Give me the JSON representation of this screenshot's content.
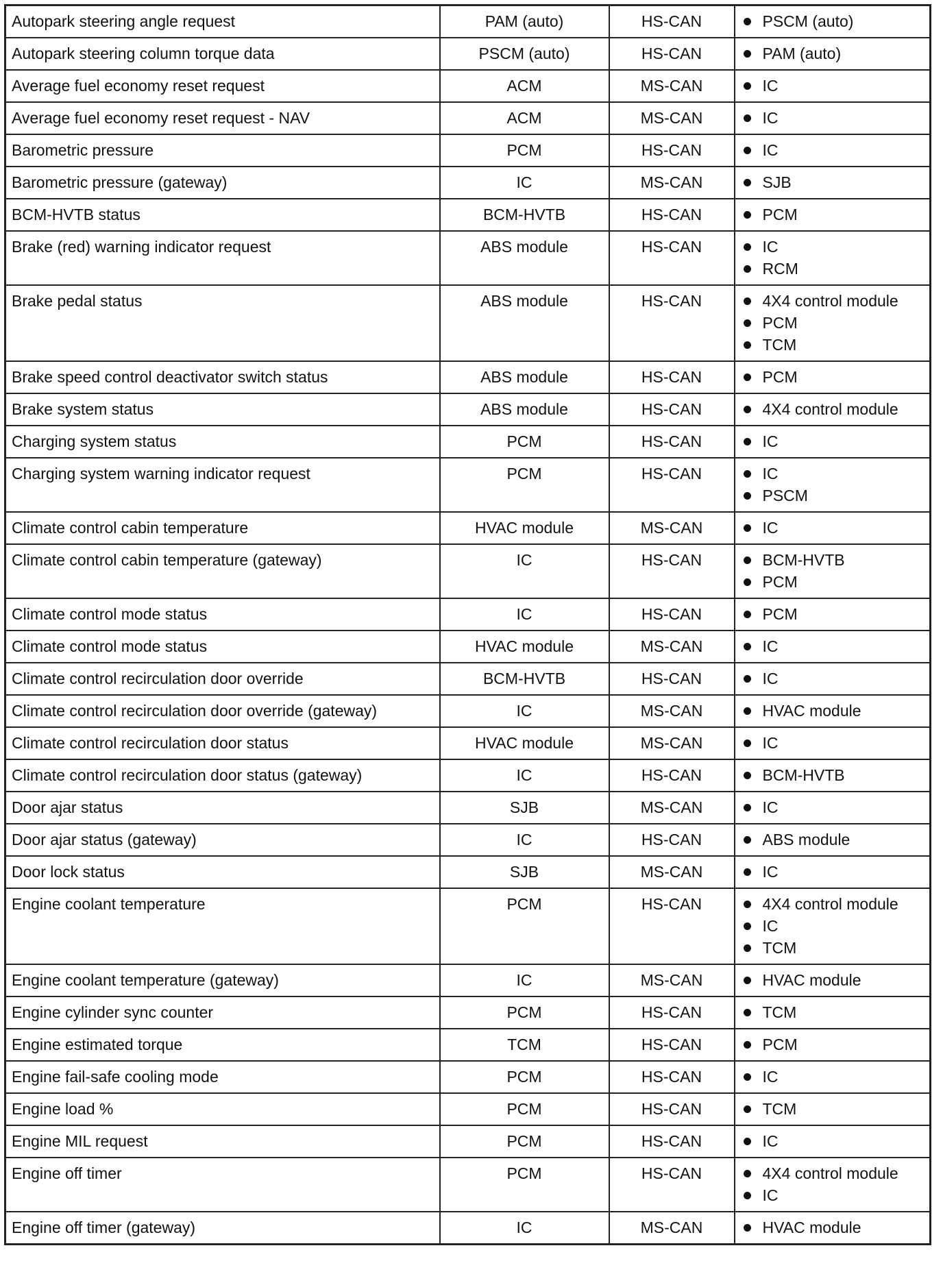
{
  "table": {
    "rows": [
      [
        "Autopark steering angle request",
        "PAM (auto)",
        "HS-CAN",
        [
          "PSCM (auto)"
        ]
      ],
      [
        "Autopark steering column torque data",
        "PSCM (auto)",
        "HS-CAN",
        [
          "PAM (auto)"
        ]
      ],
      [
        "Average fuel economy reset request",
        "ACM",
        "MS-CAN",
        [
          "IC"
        ]
      ],
      [
        "Average fuel economy reset request - NAV",
        "ACM",
        "MS-CAN",
        [
          "IC"
        ]
      ],
      [
        "Barometric pressure",
        "PCM",
        "HS-CAN",
        [
          "IC"
        ]
      ],
      [
        "Barometric pressure (gateway)",
        "IC",
        "MS-CAN",
        [
          "SJB"
        ]
      ],
      [
        "BCM-HVTB status",
        "BCM-HVTB",
        "HS-CAN",
        [
          "PCM"
        ]
      ],
      [
        "Brake (red) warning indicator request",
        "ABS module",
        "HS-CAN",
        [
          "IC",
          "RCM"
        ]
      ],
      [
        "Brake pedal status",
        "ABS module",
        "HS-CAN",
        [
          "4X4 control module",
          "PCM",
          "TCM"
        ]
      ],
      [
        "Brake speed control deactivator switch status",
        "ABS module",
        "HS-CAN",
        [
          "PCM"
        ]
      ],
      [
        "Brake system status",
        "ABS module",
        "HS-CAN",
        [
          "4X4 control module"
        ]
      ],
      [
        "Charging system status",
        "PCM",
        "HS-CAN",
        [
          "IC"
        ]
      ],
      [
        "Charging system warning indicator request",
        "PCM",
        "HS-CAN",
        [
          "IC",
          "PSCM"
        ]
      ],
      [
        "Climate control cabin temperature",
        "HVAC module",
        "MS-CAN",
        [
          "IC"
        ]
      ],
      [
        "Climate control cabin temperature (gateway)",
        "IC",
        "HS-CAN",
        [
          "BCM-HVTB",
          "PCM"
        ]
      ],
      [
        "Climate control mode status",
        "IC",
        "HS-CAN",
        [
          "PCM"
        ]
      ],
      [
        "Climate control mode status",
        "HVAC module",
        "MS-CAN",
        [
          "IC"
        ]
      ],
      [
        "Climate control recirculation door override",
        "BCM-HVTB",
        "HS-CAN",
        [
          "IC"
        ]
      ],
      [
        "Climate control recirculation door override (gateway)",
        "IC",
        "MS-CAN",
        [
          "HVAC module"
        ]
      ],
      [
        "Climate control recirculation door status",
        "HVAC module",
        "MS-CAN",
        [
          "IC"
        ]
      ],
      [
        "Climate control recirculation door status (gateway)",
        "IC",
        "HS-CAN",
        [
          "BCM-HVTB"
        ]
      ],
      [
        "Door ajar status",
        "SJB",
        "MS-CAN",
        [
          "IC"
        ]
      ],
      [
        "Door ajar status (gateway)",
        "IC",
        "HS-CAN",
        [
          "ABS module"
        ]
      ],
      [
        "Door lock status",
        "SJB",
        "MS-CAN",
        [
          "IC"
        ]
      ],
      [
        "Engine coolant temperature",
        "PCM",
        "HS-CAN",
        [
          "4X4 control module",
          "IC",
          "TCM"
        ]
      ],
      [
        "Engine coolant temperature (gateway)",
        "IC",
        "MS-CAN",
        [
          "HVAC module"
        ]
      ],
      [
        "Engine cylinder sync counter",
        "PCM",
        "HS-CAN",
        [
          "TCM"
        ]
      ],
      [
        "Engine estimated torque",
        "TCM",
        "HS-CAN",
        [
          "PCM"
        ]
      ],
      [
        "Engine fail-safe cooling mode",
        "PCM",
        "HS-CAN",
        [
          "IC"
        ]
      ],
      [
        "Engine load %",
        "PCM",
        "HS-CAN",
        [
          "TCM"
        ]
      ],
      [
        "Engine MIL request",
        "PCM",
        "HS-CAN",
        [
          "IC"
        ]
      ],
      [
        "Engine off timer",
        "PCM",
        "HS-CAN",
        [
          "4X4 control module",
          "IC"
        ]
      ],
      [
        "Engine off timer (gateway)",
        "IC",
        "MS-CAN",
        [
          "HVAC module"
        ]
      ]
    ]
  }
}
